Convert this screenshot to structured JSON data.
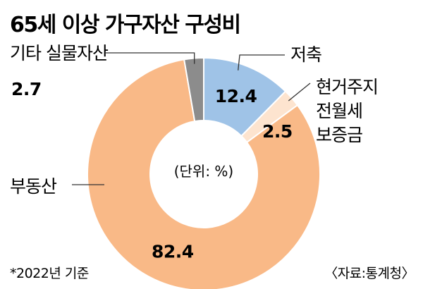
{
  "chart_data": {
    "type": "pie",
    "title": "65세 이상 가구자산 구성비",
    "unit_label": "(단위: %)",
    "categories": [
      "저축",
      "현거주지 전월세 보증금",
      "부동산",
      "기타 실물자산"
    ],
    "category_lines": [
      [
        "저축"
      ],
      [
        "현거주지",
        "전월세",
        "보증금"
      ],
      [
        "부동산"
      ],
      [
        "기타 실물자산"
      ]
    ],
    "values": [
      12.4,
      2.5,
      82.4,
      2.7
    ],
    "value_labels": [
      "12.4",
      "2.5",
      "82.4",
      "2.7"
    ],
    "colors": [
      "#9fc3e7",
      "#fde4cf",
      "#f9b987",
      "#8c8c8c"
    ],
    "donut": true,
    "footnote": "*2022년 기준",
    "source": "〈자료:통계청〉"
  }
}
